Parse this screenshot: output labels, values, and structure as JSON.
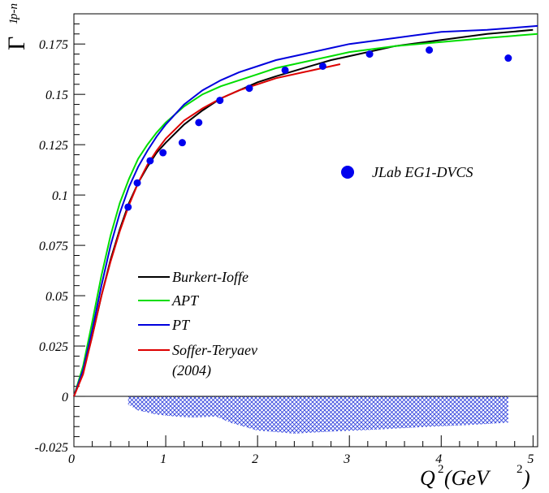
{
  "chart_data": {
    "type": "line",
    "ylabel": {
      "base": "Γ",
      "sub": "1",
      "sup": "p-n"
    },
    "xlabel": {
      "pre": "Q",
      "sup": "2",
      "post": "(GeV",
      "sup2": "2",
      "close": ")"
    },
    "xlim": [
      0,
      5.05
    ],
    "ylim": [
      -0.025,
      0.19
    ],
    "xticks": [
      {
        "v": 0,
        "label": "0"
      },
      {
        "v": 1,
        "label": "1"
      },
      {
        "v": 2,
        "label": "2"
      },
      {
        "v": 3,
        "label": "3"
      },
      {
        "v": 4,
        "label": "4"
      },
      {
        "v": 5,
        "label": "5"
      }
    ],
    "yticks": [
      {
        "v": -0.025,
        "label": "-0.025"
      },
      {
        "v": 0,
        "label": "0"
      },
      {
        "v": 0.025,
        "label": "0.025"
      },
      {
        "v": 0.05,
        "label": "0.05"
      },
      {
        "v": 0.075,
        "label": "0.075"
      },
      {
        "v": 0.1,
        "label": "0.1"
      },
      {
        "v": 0.125,
        "label": "0.125"
      },
      {
        "v": 0.15,
        "label": "0.15"
      },
      {
        "v": 0.175,
        "label": "0.175"
      }
    ],
    "series": [
      {
        "name": "Burkert-Ioffe",
        "color": "#000000",
        "x": [
          0,
          0.1,
          0.2,
          0.3,
          0.4,
          0.5,
          0.6,
          0.7,
          0.8,
          0.9,
          1.0,
          1.2,
          1.4,
          1.6,
          1.8,
          2.0,
          2.2,
          2.5,
          2.8,
          3.0,
          3.5,
          4.0,
          4.5,
          5.0
        ],
        "y": [
          0,
          0.012,
          0.03,
          0.05,
          0.068,
          0.083,
          0.096,
          0.106,
          0.114,
          0.121,
          0.126,
          0.135,
          0.142,
          0.148,
          0.152,
          0.156,
          0.159,
          0.163,
          0.167,
          0.169,
          0.174,
          0.177,
          0.18,
          0.182
        ]
      },
      {
        "name": "APT",
        "color": "#00dd00",
        "x": [
          0,
          0.1,
          0.2,
          0.3,
          0.4,
          0.5,
          0.6,
          0.7,
          0.8,
          0.9,
          1.0,
          1.2,
          1.4,
          1.6,
          1.8,
          2.0,
          2.2,
          2.5,
          2.8,
          3.0,
          3.5,
          4.0,
          4.5,
          5.05
        ],
        "y": [
          0,
          0.015,
          0.037,
          0.06,
          0.08,
          0.096,
          0.108,
          0.118,
          0.125,
          0.131,
          0.136,
          0.144,
          0.15,
          0.154,
          0.157,
          0.16,
          0.163,
          0.166,
          0.169,
          0.171,
          0.174,
          0.176,
          0.178,
          0.18
        ]
      },
      {
        "name": "PT",
        "color": "#0000dd",
        "x": [
          0,
          0.1,
          0.2,
          0.3,
          0.4,
          0.5,
          0.6,
          0.7,
          0.8,
          0.9,
          1.0,
          1.2,
          1.4,
          1.6,
          1.8,
          2.0,
          2.2,
          2.5,
          2.8,
          3.0,
          3.5,
          4.0,
          4.5,
          5.05
        ],
        "y": [
          0,
          0.013,
          0.033,
          0.055,
          0.075,
          0.091,
          0.104,
          0.114,
          0.122,
          0.129,
          0.135,
          0.145,
          0.152,
          0.157,
          0.161,
          0.164,
          0.167,
          0.17,
          0.173,
          0.175,
          0.178,
          0.181,
          0.182,
          0.184
        ]
      },
      {
        "name": "Soffer-Teryaev\n(2004)",
        "color": "#dd0000",
        "x": [
          0,
          0.1,
          0.2,
          0.3,
          0.4,
          0.5,
          0.6,
          0.7,
          0.8,
          0.9,
          1.0,
          1.2,
          1.4,
          1.6,
          1.8,
          2.0,
          2.2,
          2.5,
          2.8,
          2.9
        ],
        "y": [
          0,
          0.011,
          0.03,
          0.05,
          0.067,
          0.082,
          0.095,
          0.106,
          0.115,
          0.122,
          0.128,
          0.137,
          0.143,
          0.148,
          0.152,
          0.155,
          0.158,
          0.161,
          0.164,
          0.165
        ]
      }
    ],
    "points": {
      "name": "JLab EG1-DVCS",
      "color": "#0000ee",
      "x": [
        0.59,
        0.69,
        0.83,
        0.97,
        1.18,
        1.36,
        1.59,
        1.91,
        2.3,
        2.71,
        3.22,
        3.87,
        4.73
      ],
      "y": [
        0.094,
        0.106,
        0.117,
        0.121,
        0.126,
        0.136,
        0.147,
        0.153,
        0.162,
        0.164,
        0.17,
        0.172,
        0.168
      ]
    },
    "systematic_band": {
      "color": "#3344dd",
      "x": [
        0.59,
        0.7,
        0.9,
        1.1,
        1.3,
        1.55,
        1.7,
        2.0,
        2.4,
        2.8,
        3.3,
        3.9,
        4.4,
        4.73
      ],
      "lower": [
        -0.004,
        -0.007,
        -0.009,
        -0.01,
        -0.0105,
        -0.01,
        -0.013,
        -0.017,
        -0.0185,
        -0.0175,
        -0.0165,
        -0.015,
        -0.014,
        -0.013
      ]
    },
    "legend": {
      "lines": [
        "Burkert-Ioffe",
        "APT",
        "PT",
        "Soffer-Teryaev",
        "(2004)"
      ],
      "points": "JLab EG1-DVCS"
    }
  }
}
